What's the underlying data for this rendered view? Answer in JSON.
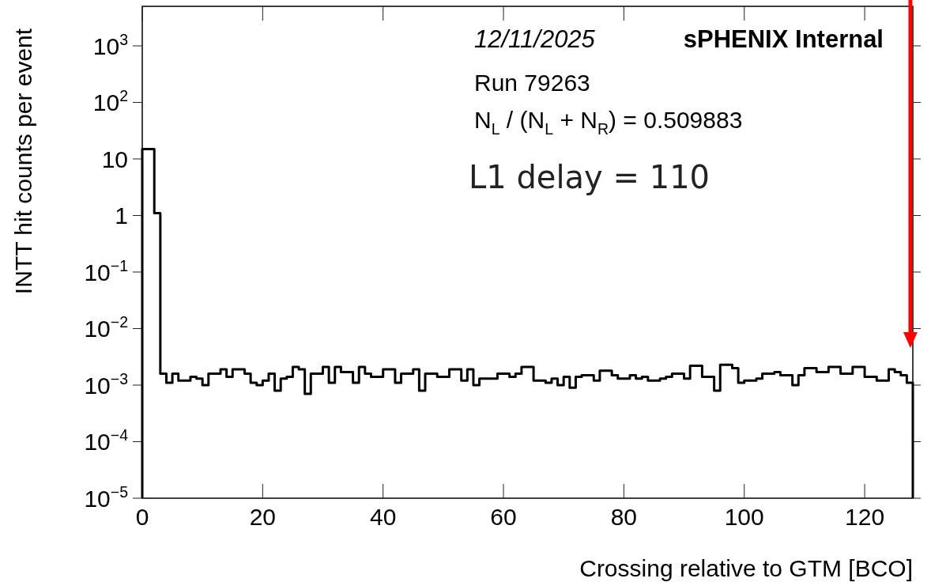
{
  "chart_data": {
    "type": "histogram",
    "xlabel": "Crossing relative to GTM [BCO]",
    "ylabel": "INTT hit counts per event",
    "log": true,
    "bins": [
      0,
      1,
      2,
      3,
      4,
      5,
      6,
      7,
      8,
      9,
      10,
      11,
      12,
      13,
      14,
      15,
      16,
      17,
      18,
      19,
      20,
      21,
      22,
      23,
      24,
      25,
      26,
      27,
      28,
      29,
      30,
      31,
      32,
      33,
      34,
      35,
      36,
      37,
      38,
      39,
      40,
      41,
      42,
      43,
      44,
      45,
      46,
      47,
      48,
      49,
      50,
      51,
      52,
      53,
      54,
      55,
      56,
      57,
      58,
      59,
      60,
      61,
      62,
      63,
      64,
      65,
      66,
      67,
      68,
      69,
      70,
      71,
      72,
      73,
      74,
      75,
      76,
      77,
      78,
      79,
      80,
      81,
      82,
      83,
      84,
      85,
      86,
      87,
      88,
      89,
      90,
      91,
      92,
      93,
      94,
      95,
      96,
      97,
      98,
      99,
      100,
      101,
      102,
      103,
      104,
      105,
      106,
      107,
      108,
      109,
      110,
      111,
      112,
      113,
      114,
      115,
      116,
      117,
      118,
      119,
      120,
      121,
      122,
      123,
      124,
      125,
      126,
      127,
      128
    ],
    "values": [
      15,
      15,
      1.1,
      0.0016,
      0.0011,
      0.0016,
      0.0012,
      0.0012,
      0.0014,
      0.0013,
      0.001,
      0.0016,
      0.0016,
      0.0019,
      0.0014,
      0.0019,
      0.0019,
      0.0016,
      0.0011,
      0.001,
      0.0012,
      0.0016,
      0.0008,
      0.0013,
      0.0014,
      0.0021,
      0.0019,
      0.0007,
      0.0016,
      0.0016,
      0.0021,
      0.0011,
      0.0021,
      0.0017,
      0.0017,
      0.0011,
      0.0021,
      0.0016,
      0.0014,
      0.0014,
      0.0019,
      0.0019,
      0.0011,
      0.0016,
      0.0016,
      0.0019,
      0.0008,
      0.0016,
      0.0016,
      0.0014,
      0.0014,
      0.0019,
      0.0019,
      0.0012,
      0.0019,
      0.001,
      0.0013,
      0.0013,
      0.0013,
      0.0016,
      0.0016,
      0.0014,
      0.0016,
      0.0021,
      0.0021,
      0.0012,
      0.0012,
      0.0011,
      0.0013,
      0.001,
      0.0014,
      0.0009,
      0.0014,
      0.0015,
      0.0015,
      0.0012,
      0.0018,
      0.0018,
      0.0015,
      0.0013,
      0.0013,
      0.0015,
      0.0013,
      0.0014,
      0.0012,
      0.0012,
      0.0013,
      0.0014,
      0.0016,
      0.0016,
      0.0013,
      0.0022,
      0.0022,
      0.0014,
      0.0014,
      0.0008,
      0.0023,
      0.0023,
      0.002,
      0.0011,
      0.0012,
      0.0012,
      0.0013,
      0.0016,
      0.0016,
      0.0017,
      0.0015,
      0.0015,
      0.001,
      0.0015,
      0.002,
      0.002,
      0.0017,
      0.0017,
      0.0021,
      0.0021,
      0.0016,
      0.0016,
      0.0021,
      0.0021,
      0.0014,
      0.0014,
      0.0012,
      0.0012,
      0.0019,
      0.0017,
      0.0015,
      0.0011
    ],
    "color": "#000000",
    "xlim": [
      0,
      128
    ],
    "xticks": [
      0,
      20,
      40,
      60,
      80,
      100,
      120
    ],
    "ylim": [
      1e-05,
      5000
    ],
    "yticks": [
      {
        "value": 1e-05,
        "label": "10$^{−5}$"
      },
      {
        "value": 0.0001,
        "label": "10$^{−4}$"
      },
      {
        "value": 0.001,
        "label": "10$^{−3}$"
      },
      {
        "value": 0.01,
        "label": "10$^{−2}$"
      },
      {
        "value": 0.1,
        "label": "10$^{−1}$"
      },
      1,
      10,
      {
        "value": 100,
        "label": "10$^{2}$"
      },
      {
        "value": 1000,
        "label": "10$^{3}$"
      }
    ],
    "grid": false,
    "ref_lines": [
      {
        "axis": "x",
        "value": 127.6,
        "color": "#ff0000"
      }
    ],
    "annotations": [
      "12/11/2025",
      "sPHENIX Internal",
      "Run 79263",
      "N$_{L}$ / (N$_{L}$ +   N$_{R}$) = 0.509883",
      "L1 delay = 110"
    ]
  }
}
